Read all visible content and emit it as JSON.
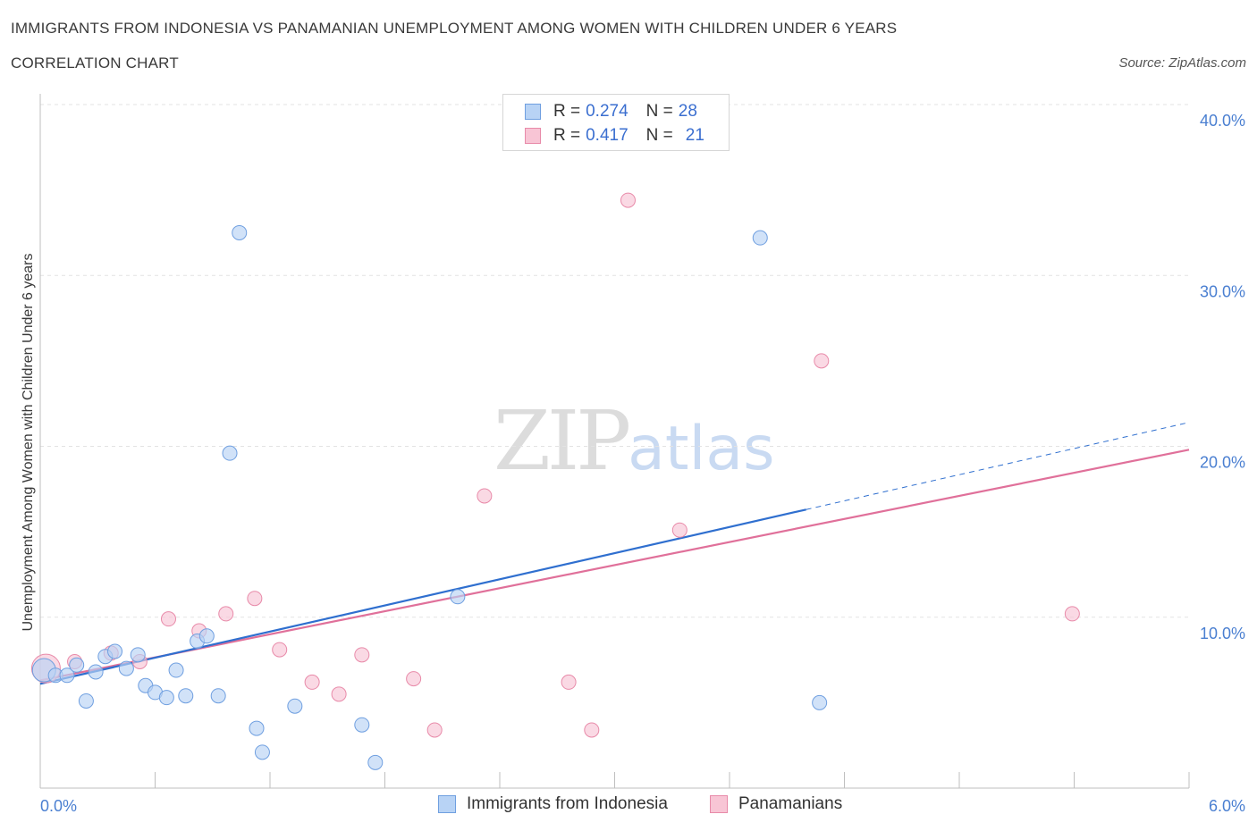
{
  "header": {
    "title": "IMMIGRANTS FROM INDONESIA VS PANAMANIAN UNEMPLOYMENT AMONG WOMEN WITH CHILDREN UNDER 6 YEARS",
    "subtitle": "CORRELATION CHART",
    "source": "Source: ZipAtlas.com"
  },
  "watermark": {
    "zip": "ZIP",
    "atlas": "atlas"
  },
  "legend": {
    "rows": [
      {
        "r_label": "R =",
        "r_value": "0.274",
        "n_label": "N =",
        "n_value": "28"
      },
      {
        "r_label": "R =",
        "r_value": "0.417",
        "n_label": "N =",
        "n_value": "21"
      }
    ]
  },
  "colors": {
    "blue_fill": "#b8d3f5",
    "blue_stroke": "#6f9fe0",
    "blue_line": "#2f6fcf",
    "pink_fill": "#f8c5d5",
    "pink_stroke": "#e88aa9",
    "pink_line": "#e0709a",
    "tick_text": "#4a7fd1",
    "grid": "#e3e3e3"
  },
  "chart_data": {
    "type": "scatter",
    "title": "IMMIGRANTS FROM INDONESIA VS PANAMANIAN UNEMPLOYMENT AMONG WOMEN WITH CHILDREN UNDER 6 YEARS",
    "xlabel": "",
    "ylabel": "Unemployment Among Women with Children Under 6 years",
    "xlim": [
      0,
      6
    ],
    "ylim": [
      0,
      40
    ],
    "y_ticks": [
      10,
      20,
      30,
      40
    ],
    "y_tick_labels": [
      "10.0%",
      "20.0%",
      "30.0%",
      "40.0%"
    ],
    "x_tick_labels": [
      "0.0%",
      "6.0%"
    ],
    "grid": true,
    "legend_position": "top-center",
    "series": [
      {
        "name": "Immigrants from Indonesia",
        "color": "blue",
        "points": [
          [
            0.02,
            6.9
          ],
          [
            0.08,
            6.6
          ],
          [
            0.14,
            6.6
          ],
          [
            0.19,
            7.2
          ],
          [
            0.24,
            5.1
          ],
          [
            0.29,
            6.8
          ],
          [
            0.34,
            7.7
          ],
          [
            0.39,
            8.0
          ],
          [
            0.45,
            7.0
          ],
          [
            0.51,
            7.8
          ],
          [
            0.55,
            6.0
          ],
          [
            0.6,
            5.6
          ],
          [
            0.66,
            5.3
          ],
          [
            0.71,
            6.9
          ],
          [
            0.76,
            5.4
          ],
          [
            0.82,
            8.6
          ],
          [
            0.87,
            8.9
          ],
          [
            0.93,
            5.4
          ],
          [
            0.99,
            19.6
          ],
          [
            1.04,
            32.5
          ],
          [
            1.13,
            3.5
          ],
          [
            1.16,
            2.1
          ],
          [
            1.33,
            4.8
          ],
          [
            1.68,
            3.7
          ],
          [
            1.75,
            1.5
          ],
          [
            2.18,
            11.2
          ],
          [
            3.76,
            32.2
          ],
          [
            4.07,
            5.0
          ]
        ],
        "trend": {
          "x": [
            0,
            4.0
          ],
          "y": [
            6.1,
            16.3
          ],
          "dashed_extension_x": [
            4.0,
            6.0
          ],
          "dashed_extension_y": [
            16.3,
            21.4
          ]
        }
      },
      {
        "name": "Panamanians",
        "color": "pink",
        "points": [
          [
            0.03,
            7.0
          ],
          [
            0.18,
            7.4
          ],
          [
            0.37,
            7.9
          ],
          [
            0.52,
            7.4
          ],
          [
            0.67,
            9.9
          ],
          [
            0.83,
            9.2
          ],
          [
            0.97,
            10.2
          ],
          [
            1.12,
            11.1
          ],
          [
            1.25,
            8.1
          ],
          [
            1.42,
            6.2
          ],
          [
            1.56,
            5.5
          ],
          [
            1.68,
            7.8
          ],
          [
            1.95,
            6.4
          ],
          [
            2.06,
            3.4
          ],
          [
            2.32,
            17.1
          ],
          [
            2.76,
            6.2
          ],
          [
            2.88,
            3.4
          ],
          [
            3.07,
            34.4
          ],
          [
            3.34,
            15.1
          ],
          [
            4.08,
            25.0
          ],
          [
            5.39,
            10.2
          ]
        ],
        "trend": {
          "x": [
            0,
            6.0
          ],
          "y": [
            6.3,
            19.8
          ]
        }
      }
    ]
  },
  "bottom_legend": {
    "items": [
      {
        "label": "Immigrants from Indonesia"
      },
      {
        "label": "Panamanians"
      }
    ]
  }
}
